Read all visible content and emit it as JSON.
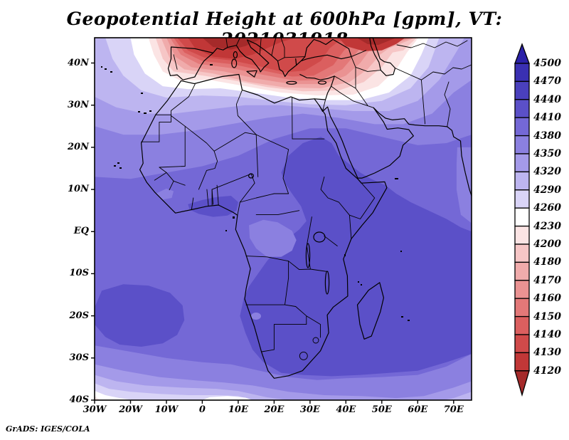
{
  "title": "Geopotential Height at 600hPa [gpm], VT: 2021031918",
  "credit": "GrADS: IGES/COLA",
  "palette": {
    "arrow_high": "#2b21a8",
    "b4470": "#3a30b2",
    "b4440": "#4a40bd",
    "b4410": "#5b50c8",
    "b4380": "#7468d6",
    "b4350": "#8b80e0",
    "b4320": "#a49ae9",
    "b4290": "#bdb5f0",
    "b4260": "#d9d4f7",
    "b4230": "#ffffff",
    "b4200": "#fbe4e4",
    "b4180": "#f6c6c6",
    "b4170": "#f0abab",
    "b4160": "#ea9292",
    "b4150": "#e37878",
    "b4140": "#db5f5f",
    "b4130": "#d04a4a",
    "b4120": "#c13737",
    "arrow_low": "#a52a2a",
    "frame": "#000000"
  },
  "chart_data": {
    "type": "heatmap",
    "subtype": "filled-contour-map",
    "variable": "Geopotential Height",
    "level": "600hPa",
    "units": "gpm",
    "valid_time": "2021031918",
    "region": "Africa / surrounding (30W-75E, 40S-46N)",
    "title": "Geopotential Height at 600hPa [gpm], VT: 2021031918",
    "lon_range": [
      -30,
      75
    ],
    "lat_range": [
      -40,
      46
    ],
    "lon_tick_deg": [
      -30,
      -20,
      -10,
      0,
      10,
      20,
      30,
      40,
      50,
      60,
      70
    ],
    "lon_tick_labels": [
      "30W",
      "20W",
      "10W",
      "0",
      "10E",
      "20E",
      "30E",
      "40E",
      "50E",
      "60E",
      "70E"
    ],
    "lat_tick_deg": [
      40,
      30,
      20,
      10,
      0,
      -10,
      -20,
      -30,
      -40
    ],
    "lat_tick_labels": [
      "40N",
      "30N",
      "20N",
      "10N",
      "EQ",
      "10S",
      "20S",
      "30S",
      "40S"
    ],
    "contour_levels": [
      4120,
      4130,
      4140,
      4150,
      4160,
      4170,
      4180,
      4200,
      4230,
      4260,
      4290,
      4320,
      4350,
      4380,
      4410,
      4440,
      4470,
      4500
    ],
    "grid": false,
    "legend_position": "right-colorbar",
    "colorbar": {
      "labels_top_to_bottom": [
        "4500",
        "4470",
        "4440",
        "4410",
        "4380",
        "4350",
        "4320",
        "4290",
        "4260",
        "4230",
        "4200",
        "4180",
        "4170",
        "4160",
        "4150",
        "4140",
        "4130",
        "4120"
      ],
      "colors_top_to_bottom": [
        "#2b21a8",
        "#3a30b2",
        "#4a40bd",
        "#5b50c8",
        "#7468d6",
        "#8b80e0",
        "#a49ae9",
        "#bdb5f0",
        "#d9d4f7",
        "#ffffff",
        "#fbe4e4",
        "#f6c6c6",
        "#f0abab",
        "#ea9292",
        "#e37878",
        "#db5f5f",
        "#d04a4a",
        "#c13737",
        "#a52a2a"
      ]
    },
    "features_described": [
      "Deep low (values below 4120 gpm, dark red) over Iberia, the Mediterranean, Italy, the Balkans, Turkey and the Caucasus along the northern edge",
      "White transition band (4230-4260 gpm) sweeping across North Africa near 30-35N from Morocco to the Middle East",
      "Broad 4380-4410 gpm field (medium blue-violet) over most of tropical Africa and adjacent oceans",
      "Darker 4410-4440 gpm region over Sudan, Ethiopia, the Red Sea, Horn of Africa extending south over Southern Africa, Madagascar and the SW Indian Ocean",
      "Separate 4410-4440 gpm maximum over the subtropical South Atlantic",
      "Values falling again toward 40S with a pale band along the bottom edge and a small pink patch at the bottom-left corner"
    ]
  }
}
